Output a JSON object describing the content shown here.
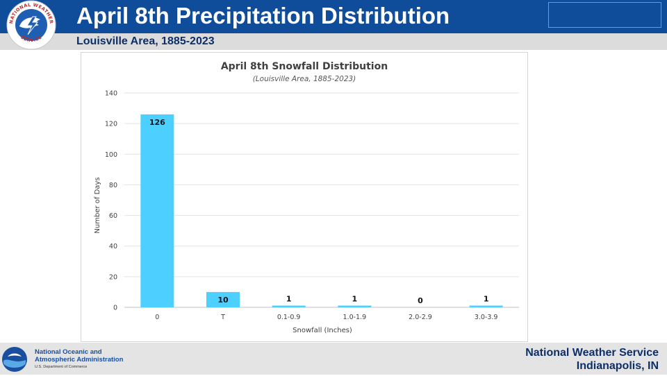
{
  "header": {
    "title": "April 8th Precipitation Distribution",
    "subtitle": "Louisville Area, 1885-2023",
    "logo": {
      "icon": "nws-logo-icon",
      "text_top": "NATIONAL WEATHER",
      "text_bottom": "SERVICE"
    }
  },
  "chart_data": {
    "type": "bar",
    "title": "April 8th Snowfall Distribution",
    "subtitle": "(Louisville Area, 1885-2023)",
    "xlabel": "Snowfall (Inches)",
    "ylabel": "Number of Days",
    "categories": [
      "0",
      "T",
      "0.1-0.9",
      "1.0-1.9",
      "2.0-2.9",
      "3.0-3.9"
    ],
    "values": [
      126,
      10,
      1,
      1,
      0,
      1
    ],
    "ylim": [
      0,
      140
    ],
    "yticks": [
      0,
      20,
      40,
      60,
      80,
      100,
      120,
      140
    ],
    "grid": true,
    "bar_color": "#4dcfff",
    "data_labels": [
      "126",
      "10",
      "1",
      "1",
      "0",
      "1"
    ]
  },
  "footer": {
    "noaa_icon": "noaa-logo-icon",
    "noaa_line1": "National Oceanic and",
    "noaa_line2": "Atmospheric Administration",
    "noaa_line3": "U.S. Department of Commerce",
    "nws_line1": "National Weather Service",
    "nws_line2": "Indianapolis, IN"
  },
  "colors": {
    "header_blue": "#0f4c99",
    "subtitle_navy": "#0d2f66",
    "bar": "#4dcfff"
  }
}
